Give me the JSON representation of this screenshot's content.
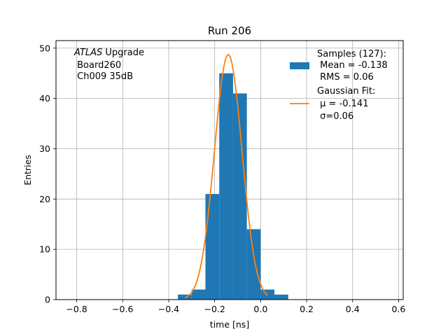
{
  "chart_data": {
    "type": "bar",
    "title": "Run 206",
    "xlabel": "time [ns]",
    "ylabel": "Entries",
    "xlim": [
      -0.89,
      0.62
    ],
    "ylim": [
      0,
      51.5
    ],
    "grid": true,
    "xticks": [
      -0.8,
      -0.6,
      -0.4,
      -0.2,
      0.0,
      0.2,
      0.4,
      0.6
    ],
    "xtick_labels": [
      "−0.8",
      "−0.6",
      "−0.4",
      "−0.2",
      "0.0",
      "0.2",
      "0.4",
      "0.6"
    ],
    "yticks": [
      0,
      10,
      20,
      30,
      40,
      50
    ],
    "ytick_labels": [
      "0",
      "10",
      "20",
      "30",
      "40",
      "50"
    ],
    "annotation": {
      "line1_italic": "ATLAS",
      "line1_rest": " Upgrade",
      "line2": " Board260",
      "line3": " Ch009 35dB"
    },
    "histogram": {
      "name": "Samples (127):",
      "color": "#1f77b4",
      "bin_edges": [
        -0.36,
        -0.3,
        -0.24,
        -0.18,
        -0.12,
        -0.06,
        0.0,
        0.06,
        0.12
      ],
      "counts": [
        1,
        2,
        21,
        45,
        41,
        14,
        2,
        1
      ],
      "bin_lefts": [
        -0.36,
        -0.3,
        -0.24,
        -0.18,
        -0.12,
        -0.06,
        0.0,
        0.06
      ],
      "bin_width": 0.06
    },
    "fit": {
      "name": "Gaussian Fit:",
      "color": "#ff7f0e",
      "mu": -0.141,
      "sigma": 0.06,
      "amplitude": 48.7,
      "x_range": [
        -0.33,
        0.03
      ]
    },
    "legend": {
      "position": "top-right",
      "entries": [
        {
          "lines": [
            "Samples (127):",
            " Mean = -0.138",
            " RMS = 0.06"
          ],
          "marker": "patch",
          "color": "#1f77b4"
        },
        {
          "lines": [
            "Gaussian Fit:",
            " μ = -0.141",
            " σ=0.06"
          ],
          "marker": "line",
          "color": "#ff7f0e"
        }
      ]
    }
  }
}
